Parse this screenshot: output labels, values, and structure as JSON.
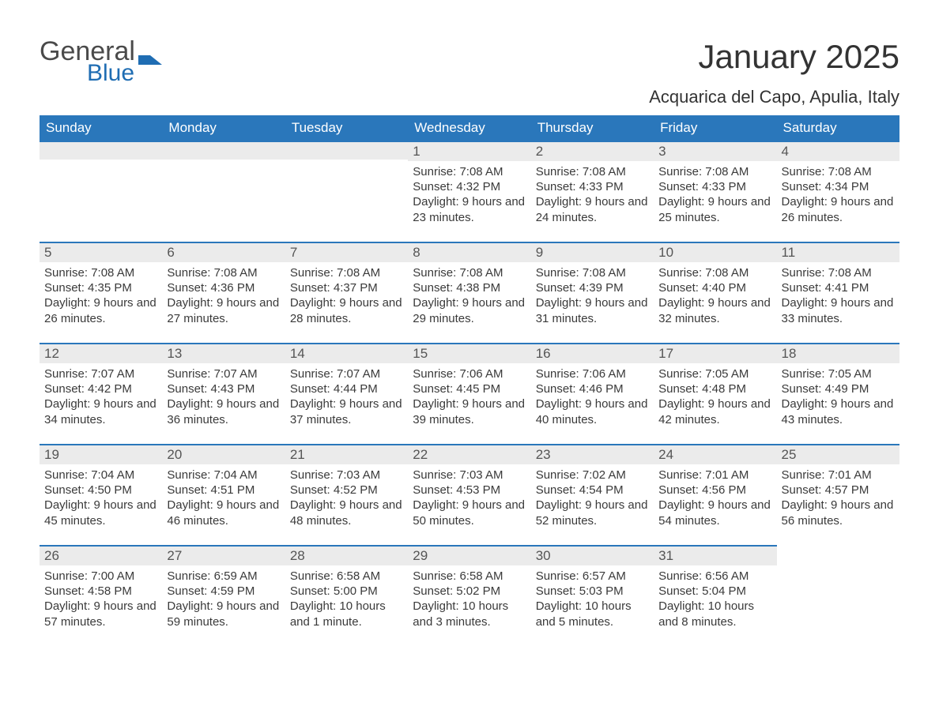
{
  "logo": {
    "word1": "General",
    "word2": "Blue"
  },
  "header": {
    "month_title": "January 2025",
    "location": "Acquarica del Capo, Apulia, Italy"
  },
  "colors": {
    "header_bg": "#2a77bb",
    "header_text": "#ffffff",
    "daynum_bg": "#ebebeb",
    "row_border": "#2a77bb",
    "body_text": "#3a3a3a",
    "logo_blue": "#1f6db3",
    "logo_gray": "#4a4a4a",
    "page_bg": "#ffffff"
  },
  "typography": {
    "title_fontsize": 42,
    "location_fontsize": 22,
    "dayheader_fontsize": 17,
    "daynum_fontsize": 17,
    "body_fontsize": 15,
    "font_family": "Arial"
  },
  "calendar": {
    "day_headers": [
      "Sunday",
      "Monday",
      "Tuesday",
      "Wednesday",
      "Thursday",
      "Friday",
      "Saturday"
    ],
    "weeks": [
      [
        null,
        null,
        null,
        {
          "n": "1",
          "sunrise": "Sunrise: 7:08 AM",
          "sunset": "Sunset: 4:32 PM",
          "daylight": "Daylight: 9 hours and 23 minutes."
        },
        {
          "n": "2",
          "sunrise": "Sunrise: 7:08 AM",
          "sunset": "Sunset: 4:33 PM",
          "daylight": "Daylight: 9 hours and 24 minutes."
        },
        {
          "n": "3",
          "sunrise": "Sunrise: 7:08 AM",
          "sunset": "Sunset: 4:33 PM",
          "daylight": "Daylight: 9 hours and 25 minutes."
        },
        {
          "n": "4",
          "sunrise": "Sunrise: 7:08 AM",
          "sunset": "Sunset: 4:34 PM",
          "daylight": "Daylight: 9 hours and 26 minutes."
        }
      ],
      [
        {
          "n": "5",
          "sunrise": "Sunrise: 7:08 AM",
          "sunset": "Sunset: 4:35 PM",
          "daylight": "Daylight: 9 hours and 26 minutes."
        },
        {
          "n": "6",
          "sunrise": "Sunrise: 7:08 AM",
          "sunset": "Sunset: 4:36 PM",
          "daylight": "Daylight: 9 hours and 27 minutes."
        },
        {
          "n": "7",
          "sunrise": "Sunrise: 7:08 AM",
          "sunset": "Sunset: 4:37 PM",
          "daylight": "Daylight: 9 hours and 28 minutes."
        },
        {
          "n": "8",
          "sunrise": "Sunrise: 7:08 AM",
          "sunset": "Sunset: 4:38 PM",
          "daylight": "Daylight: 9 hours and 29 minutes."
        },
        {
          "n": "9",
          "sunrise": "Sunrise: 7:08 AM",
          "sunset": "Sunset: 4:39 PM",
          "daylight": "Daylight: 9 hours and 31 minutes."
        },
        {
          "n": "10",
          "sunrise": "Sunrise: 7:08 AM",
          "sunset": "Sunset: 4:40 PM",
          "daylight": "Daylight: 9 hours and 32 minutes."
        },
        {
          "n": "11",
          "sunrise": "Sunrise: 7:08 AM",
          "sunset": "Sunset: 4:41 PM",
          "daylight": "Daylight: 9 hours and 33 minutes."
        }
      ],
      [
        {
          "n": "12",
          "sunrise": "Sunrise: 7:07 AM",
          "sunset": "Sunset: 4:42 PM",
          "daylight": "Daylight: 9 hours and 34 minutes."
        },
        {
          "n": "13",
          "sunrise": "Sunrise: 7:07 AM",
          "sunset": "Sunset: 4:43 PM",
          "daylight": "Daylight: 9 hours and 36 minutes."
        },
        {
          "n": "14",
          "sunrise": "Sunrise: 7:07 AM",
          "sunset": "Sunset: 4:44 PM",
          "daylight": "Daylight: 9 hours and 37 minutes."
        },
        {
          "n": "15",
          "sunrise": "Sunrise: 7:06 AM",
          "sunset": "Sunset: 4:45 PM",
          "daylight": "Daylight: 9 hours and 39 minutes."
        },
        {
          "n": "16",
          "sunrise": "Sunrise: 7:06 AM",
          "sunset": "Sunset: 4:46 PM",
          "daylight": "Daylight: 9 hours and 40 minutes."
        },
        {
          "n": "17",
          "sunrise": "Sunrise: 7:05 AM",
          "sunset": "Sunset: 4:48 PM",
          "daylight": "Daylight: 9 hours and 42 minutes."
        },
        {
          "n": "18",
          "sunrise": "Sunrise: 7:05 AM",
          "sunset": "Sunset: 4:49 PM",
          "daylight": "Daylight: 9 hours and 43 minutes."
        }
      ],
      [
        {
          "n": "19",
          "sunrise": "Sunrise: 7:04 AM",
          "sunset": "Sunset: 4:50 PM",
          "daylight": "Daylight: 9 hours and 45 minutes."
        },
        {
          "n": "20",
          "sunrise": "Sunrise: 7:04 AM",
          "sunset": "Sunset: 4:51 PM",
          "daylight": "Daylight: 9 hours and 46 minutes."
        },
        {
          "n": "21",
          "sunrise": "Sunrise: 7:03 AM",
          "sunset": "Sunset: 4:52 PM",
          "daylight": "Daylight: 9 hours and 48 minutes."
        },
        {
          "n": "22",
          "sunrise": "Sunrise: 7:03 AM",
          "sunset": "Sunset: 4:53 PM",
          "daylight": "Daylight: 9 hours and 50 minutes."
        },
        {
          "n": "23",
          "sunrise": "Sunrise: 7:02 AM",
          "sunset": "Sunset: 4:54 PM",
          "daylight": "Daylight: 9 hours and 52 minutes."
        },
        {
          "n": "24",
          "sunrise": "Sunrise: 7:01 AM",
          "sunset": "Sunset: 4:56 PM",
          "daylight": "Daylight: 9 hours and 54 minutes."
        },
        {
          "n": "25",
          "sunrise": "Sunrise: 7:01 AM",
          "sunset": "Sunset: 4:57 PM",
          "daylight": "Daylight: 9 hours and 56 minutes."
        }
      ],
      [
        {
          "n": "26",
          "sunrise": "Sunrise: 7:00 AM",
          "sunset": "Sunset: 4:58 PM",
          "daylight": "Daylight: 9 hours and 57 minutes."
        },
        {
          "n": "27",
          "sunrise": "Sunrise: 6:59 AM",
          "sunset": "Sunset: 4:59 PM",
          "daylight": "Daylight: 9 hours and 59 minutes."
        },
        {
          "n": "28",
          "sunrise": "Sunrise: 6:58 AM",
          "sunset": "Sunset: 5:00 PM",
          "daylight": "Daylight: 10 hours and 1 minute."
        },
        {
          "n": "29",
          "sunrise": "Sunrise: 6:58 AM",
          "sunset": "Sunset: 5:02 PM",
          "daylight": "Daylight: 10 hours and 3 minutes."
        },
        {
          "n": "30",
          "sunrise": "Sunrise: 6:57 AM",
          "sunset": "Sunset: 5:03 PM",
          "daylight": "Daylight: 10 hours and 5 minutes."
        },
        {
          "n": "31",
          "sunrise": "Sunrise: 6:56 AM",
          "sunset": "Sunset: 5:04 PM",
          "daylight": "Daylight: 10 hours and 8 minutes."
        },
        null
      ]
    ]
  }
}
